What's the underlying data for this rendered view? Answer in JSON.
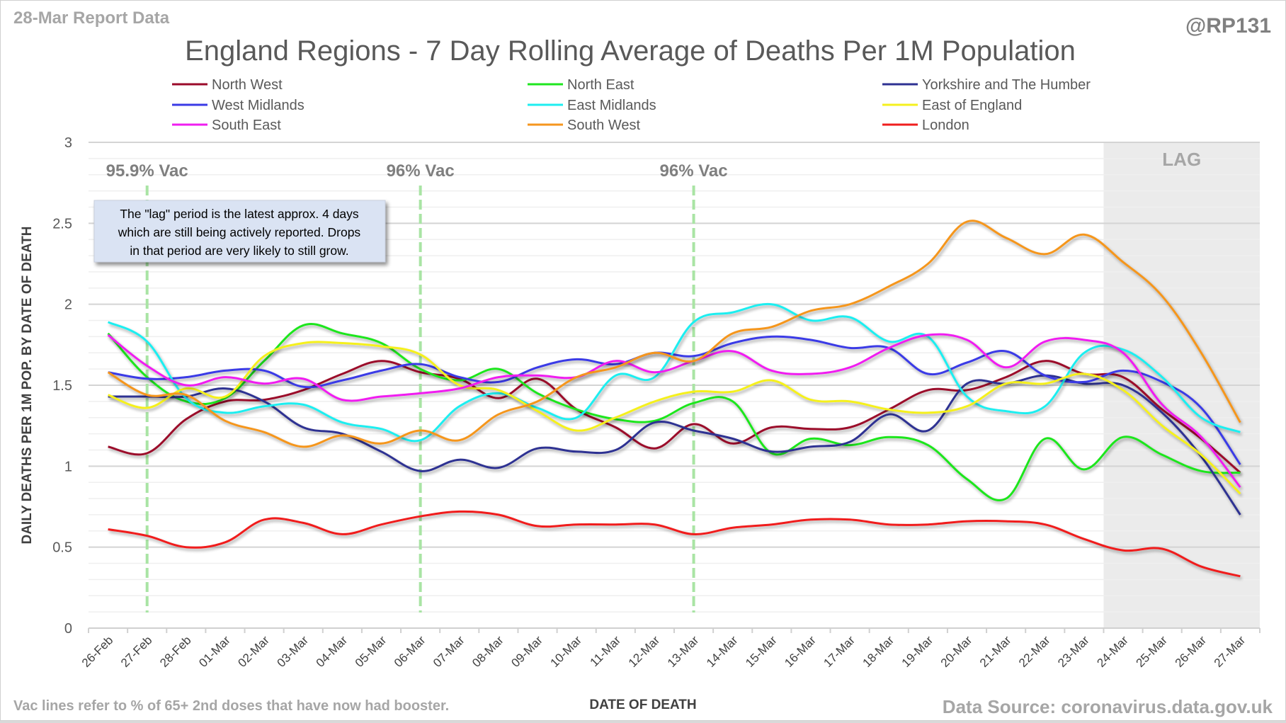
{
  "header": {
    "report_label": "28-Mar Report Data",
    "author": "@RP131"
  },
  "footer": {
    "note": "Vac lines refer to % of 65+ 2nd doses that have now had booster.",
    "source": "Data Source: coronavirus.data.gov.uk"
  },
  "annotation_box": {
    "lines": [
      "The \"lag\" period is the latest approx. 4 days",
      "which are still being actively reported.  Drops",
      "in that period are very likely to still grow."
    ]
  },
  "chart_data": {
    "type": "line",
    "title": "England Regions - 7 Day Rolling Average of Deaths Per 1M Population",
    "xlabel": "DATE OF DEATH",
    "ylabel": "DAILY DEATHS PER 1M POP. BY DATE OF DEATH",
    "ylim": [
      0,
      3
    ],
    "yticks": [
      0,
      0.5,
      1,
      1.5,
      2,
      2.5,
      3
    ],
    "ytick_labels": [
      "0",
      "0.5",
      "1",
      "1.5",
      "2",
      "2.5",
      "3"
    ],
    "minor_grid_step": 0.1,
    "grid": true,
    "legend_position": "top",
    "categories": [
      "26-Feb",
      "27-Feb",
      "28-Feb",
      "01-Mar",
      "02-Mar",
      "03-Mar",
      "04-Mar",
      "05-Mar",
      "06-Mar",
      "07-Mar",
      "08-Mar",
      "09-Mar",
      "10-Mar",
      "11-Mar",
      "12-Mar",
      "13-Mar",
      "14-Mar",
      "15-Mar",
      "16-Mar",
      "17-Mar",
      "18-Mar",
      "19-Mar",
      "20-Mar",
      "21-Mar",
      "22-Mar",
      "23-Mar",
      "24-Mar",
      "25-Mar",
      "26-Mar",
      "27-Mar"
    ],
    "lag_region": {
      "label": "LAG",
      "start": "24-Mar",
      "end": "27-Mar",
      "color": "#ebebeb"
    },
    "vac_lines": [
      {
        "label": "95.9% Vac",
        "category": "27-Feb",
        "color": "#a9e4a4"
      },
      {
        "label": "96% Vac",
        "category": "06-Mar",
        "color": "#a9e4a4"
      },
      {
        "label": "96% Vac",
        "category": "13-Mar",
        "color": "#a9e4a4"
      }
    ],
    "series": [
      {
        "name": "North West",
        "color": "#9b0a2a",
        "values": [
          1.12,
          1.08,
          1.29,
          1.4,
          1.41,
          1.47,
          1.57,
          1.65,
          1.58,
          1.54,
          1.42,
          1.54,
          1.35,
          1.24,
          1.11,
          1.26,
          1.14,
          1.24,
          1.23,
          1.24,
          1.35,
          1.47,
          1.47,
          1.55,
          1.65,
          1.57,
          1.55,
          1.35,
          1.17,
          0.96
        ]
      },
      {
        "name": "North East",
        "color": "#1ee61e",
        "values": [
          1.82,
          1.55,
          1.4,
          1.42,
          1.65,
          1.87,
          1.82,
          1.76,
          1.6,
          1.53,
          1.6,
          1.45,
          1.35,
          1.29,
          1.28,
          1.39,
          1.4,
          1.08,
          1.17,
          1.13,
          1.18,
          1.13,
          0.92,
          0.8,
          1.17,
          0.98,
          1.18,
          1.07,
          0.97,
          0.96
        ]
      },
      {
        "name": "Yorkshire and The Humber",
        "color": "#2e3192",
        "values": [
          1.43,
          1.43,
          1.43,
          1.48,
          1.4,
          1.24,
          1.2,
          1.09,
          0.97,
          1.04,
          0.99,
          1.11,
          1.09,
          1.1,
          1.27,
          1.22,
          1.17,
          1.09,
          1.12,
          1.15,
          1.32,
          1.22,
          1.51,
          1.51,
          1.56,
          1.51,
          1.5,
          1.33,
          1.06,
          0.7
        ]
      },
      {
        "name": "West Midlands",
        "color": "#3a3ae6",
        "values": [
          1.58,
          1.54,
          1.55,
          1.59,
          1.59,
          1.49,
          1.53,
          1.59,
          1.63,
          1.55,
          1.52,
          1.61,
          1.66,
          1.63,
          1.7,
          1.68,
          1.76,
          1.8,
          1.78,
          1.73,
          1.73,
          1.57,
          1.64,
          1.71,
          1.56,
          1.52,
          1.59,
          1.52,
          1.36,
          1.01
        ]
      },
      {
        "name": "East Midlands",
        "color": "#1eeef0",
        "values": [
          1.89,
          1.77,
          1.42,
          1.33,
          1.37,
          1.38,
          1.27,
          1.23,
          1.16,
          1.37,
          1.45,
          1.36,
          1.3,
          1.56,
          1.55,
          1.89,
          1.95,
          2.0,
          1.9,
          1.92,
          1.77,
          1.8,
          1.43,
          1.34,
          1.37,
          1.7,
          1.72,
          1.55,
          1.3,
          1.21
        ]
      },
      {
        "name": "East of England",
        "color": "#f5f01e",
        "values": [
          1.44,
          1.36,
          1.48,
          1.43,
          1.68,
          1.76,
          1.76,
          1.74,
          1.69,
          1.5,
          1.47,
          1.34,
          1.22,
          1.3,
          1.4,
          1.46,
          1.46,
          1.53,
          1.41,
          1.4,
          1.35,
          1.33,
          1.37,
          1.51,
          1.51,
          1.57,
          1.47,
          1.25,
          1.07,
          0.83
        ]
      },
      {
        "name": "South East",
        "color": "#f01ef0",
        "values": [
          1.81,
          1.62,
          1.5,
          1.55,
          1.51,
          1.54,
          1.41,
          1.43,
          1.45,
          1.48,
          1.55,
          1.56,
          1.55,
          1.65,
          1.58,
          1.65,
          1.71,
          1.59,
          1.57,
          1.61,
          1.73,
          1.81,
          1.78,
          1.61,
          1.77,
          1.78,
          1.7,
          1.38,
          1.18,
          0.87
        ]
      },
      {
        "name": "South West",
        "color": "#f5961e",
        "values": [
          1.58,
          1.44,
          1.44,
          1.28,
          1.21,
          1.12,
          1.19,
          1.14,
          1.22,
          1.16,
          1.32,
          1.4,
          1.55,
          1.61,
          1.7,
          1.65,
          1.82,
          1.86,
          1.96,
          2.0,
          2.11,
          2.25,
          2.51,
          2.41,
          2.31,
          2.43,
          2.26,
          2.05,
          1.7,
          1.27
        ]
      },
      {
        "name": "London",
        "color": "#f01e1e",
        "values": [
          0.61,
          0.57,
          0.5,
          0.53,
          0.67,
          0.65,
          0.58,
          0.64,
          0.69,
          0.72,
          0.7,
          0.63,
          0.64,
          0.64,
          0.64,
          0.58,
          0.62,
          0.64,
          0.67,
          0.67,
          0.64,
          0.64,
          0.66,
          0.66,
          0.64,
          0.55,
          0.48,
          0.49,
          0.38,
          0.32
        ]
      }
    ]
  }
}
